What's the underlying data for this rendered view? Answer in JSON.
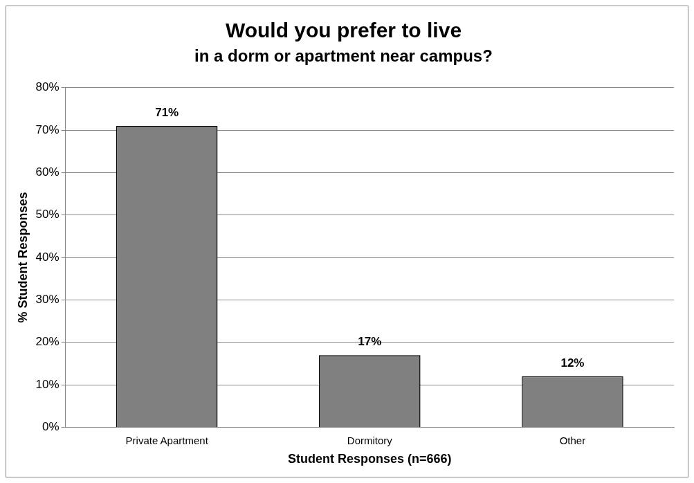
{
  "chart_data": {
    "type": "bar",
    "title": "Would you prefer to live",
    "subtitle": "in a dorm or apartment near campus?",
    "xlabel": "Student Responses (n=666)",
    "ylabel": "% Student Responses",
    "categories": [
      "Private Apartment",
      "Dormitory",
      "Other"
    ],
    "values": [
      71,
      17,
      12
    ],
    "value_labels": [
      "71%",
      "17%",
      "12%"
    ],
    "color": "#808080",
    "ylim": [
      0,
      80
    ],
    "yticks": [
      {
        "value": 0,
        "label": "0%"
      },
      {
        "value": 10,
        "label": "10%"
      },
      {
        "value": 20,
        "label": "20%"
      },
      {
        "value": 30,
        "label": "30%"
      },
      {
        "value": 40,
        "label": "40%"
      },
      {
        "value": 50,
        "label": "50%"
      },
      {
        "value": 60,
        "label": "60%"
      },
      {
        "value": 70,
        "label": "70%"
      },
      {
        "value": 80,
        "label": "80%"
      }
    ],
    "grid": "y",
    "legend": false
  }
}
